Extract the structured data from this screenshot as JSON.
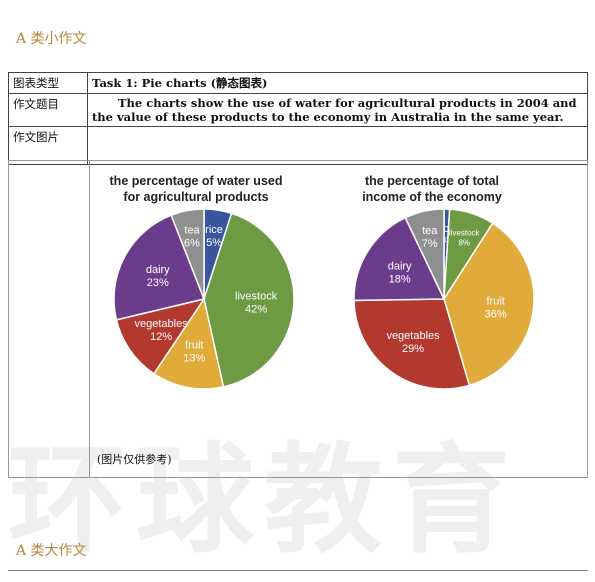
{
  "headings": {
    "small": "A 类小作文",
    "big": "A 类大作文"
  },
  "table": {
    "rows": [
      {
        "label": "图表类型",
        "value": "Task 1: Pie charts (静态图表)"
      },
      {
        "label": "作文题目",
        "value": "The charts show the use of water for agricultural products in 2004 and the value of these products to the economy in Australia  in the same year."
      },
      {
        "label": "作文图片",
        "value": ""
      }
    ]
  },
  "image_caption": "(图片仅供参考)",
  "watermark": "环球教育",
  "chart_data": [
    {
      "type": "pie",
      "title_lines": [
        "the percentage of water used",
        "for agricultural products"
      ],
      "slices": [
        {
          "name": "rice",
          "value": 5,
          "label": "5%",
          "color": "#3a55a0"
        },
        {
          "name": "livestock",
          "value": 42,
          "label": "42%",
          "color": "#6e9a44"
        },
        {
          "name": "fruit",
          "value": 13,
          "label": "13%",
          "color": "#e0ab3b"
        },
        {
          "name": "vegetables",
          "value": 12,
          "label": "12%",
          "color": "#b3382e"
        },
        {
          "name": "dairy",
          "value": 23,
          "label": "23%",
          "color": "#6c3c8c"
        },
        {
          "name": "tea",
          "value": 6,
          "label": "6%",
          "color": "#8f8f8f"
        }
      ]
    },
    {
      "type": "pie",
      "title_lines": [
        "the percentage of total",
        "income of the economy"
      ],
      "slices": [
        {
          "name": "rice",
          "value": 1,
          "label": "1%",
          "color": "#3a55a0"
        },
        {
          "name": "livestock",
          "value": 8,
          "label": "8%",
          "color": "#6e9a44"
        },
        {
          "name": "fruit",
          "value": 36,
          "label": "36%",
          "color": "#e0ab3b"
        },
        {
          "name": "vegetables",
          "value": 29,
          "label": "29%",
          "color": "#b3382e"
        },
        {
          "name": "dairy",
          "value": 18,
          "label": "18%",
          "color": "#6c3c8c"
        },
        {
          "name": "tea",
          "value": 7,
          "label": "7%",
          "color": "#8f8f8f"
        }
      ]
    }
  ]
}
